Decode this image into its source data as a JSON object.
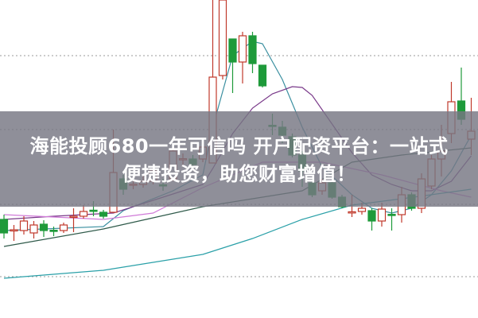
{
  "headline": {
    "line1": "海能投顾680一年可信吗 开户配资平台：一站式",
    "line2": "便捷投资，助您财富增值！"
  },
  "colors": {
    "up": "#c0392b",
    "down": "#1e9a3a",
    "ma_short": "#3a8fa0",
    "ma_mid": "#7a3a8a",
    "ma_long": "#2f5a4a",
    "ma_pink": "#d07ad8",
    "ma_base": "#2aa0a8",
    "grid": "#999999",
    "banner": "#767682"
  },
  "chart_data": {
    "type": "candlestick",
    "ylim": [
      0,
      100
    ],
    "grid": true,
    "grid_levels": [
      82.5,
      59.25,
      35.75,
      13
    ],
    "candles": [
      [
        31,
        26.75,
        32.5,
        25
      ],
      [
        27.5,
        27.75,
        29.25,
        24.25
      ],
      [
        27.5,
        30.5,
        32,
        26.25
      ],
      [
        26.75,
        29.25,
        30.5,
        25
      ],
      [
        29.5,
        27.5,
        30.75,
        25.5
      ],
      [
        27.6,
        27.4,
        28.75,
        25.75
      ],
      [
        27.5,
        29.25,
        30,
        26.75
      ],
      [
        31.8,
        32,
        34.5,
        27
      ],
      [
        32,
        33.5,
        35.5,
        31.25
      ],
      [
        33.9,
        33.6,
        36.75,
        32
      ],
      [
        33.25,
        32,
        34,
        31.25
      ],
      [
        33.25,
        45.75,
        59.25,
        33
      ],
      [
        43.75,
        40.5,
        45,
        38.75
      ],
      [
        41.9,
        42.1,
        43.75,
        40.5
      ],
      [
        42,
        43,
        45,
        41
      ],
      [
        43,
        46.25,
        48,
        42
      ],
      [
        41.9,
        41.6,
        43.75,
        40
      ],
      [
        43.75,
        52.5,
        53.75,
        43
      ],
      [
        49.9,
        50.1,
        51.75,
        47.5
      ],
      [
        50,
        48.25,
        51.25,
        47
      ],
      [
        50,
        53.75,
        56,
        49
      ],
      [
        48.75,
        75.75,
        100,
        48.75
      ],
      [
        76.25,
        100,
        100,
        75
      ],
      [
        87.75,
        80.5,
        87.75,
        70.75
      ],
      [
        80.5,
        88.75,
        90,
        73.75
      ],
      [
        88.75,
        80,
        90,
        77
      ],
      [
        79.5,
        73,
        79.5,
        72.5
      ],
      [
        60.6,
        60.4,
        64.25,
        57.5
      ],
      [
        60,
        57.5,
        62,
        55
      ],
      [
        57,
        51.25,
        58,
        50.5
      ],
      [
        51.25,
        46.25,
        52.5,
        41.25
      ],
      [
        42.5,
        38.75,
        43.75,
        38
      ],
      [
        40,
        42.5,
        43.75,
        38.75
      ],
      [
        42.5,
        38,
        43,
        37.5
      ],
      [
        38,
        35,
        38.75,
        34.5
      ],
      [
        33.1,
        33.4,
        38.75,
        31.75
      ],
      [
        33.5,
        34.5,
        36.25,
        32.5
      ],
      [
        33.75,
        30.5,
        34.5,
        27.5
      ],
      [
        30.5,
        34.25,
        36.25,
        28.75
      ],
      [
        32.6,
        32.4,
        34.5,
        27.5
      ],
      [
        32.5,
        38.75,
        41.25,
        30
      ],
      [
        38.75,
        34.5,
        39.5,
        33.75
      ],
      [
        34.5,
        43.75,
        45.5,
        33
      ],
      [
        41.5,
        50,
        51.25,
        40.5
      ],
      [
        50,
        52.5,
        60.75,
        44.5
      ],
      [
        58,
        68,
        74.25,
        55
      ],
      [
        68.25,
        62.5,
        78.75,
        60.75
      ],
      [
        56.25,
        58.75,
        69.25,
        51.25
      ]
    ],
    "candle_fields": [
      "open",
      "close",
      "high",
      "low"
    ],
    "moving_averages": [
      {
        "color_key": "ma_short",
        "points": [
          [
            0,
            27.5
          ],
          [
            10,
            28.75
          ],
          [
            12,
            33.75
          ],
          [
            17,
            40
          ],
          [
            20,
            45
          ],
          [
            21,
            60
          ],
          [
            22,
            71.25
          ],
          [
            23,
            82.5
          ],
          [
            25,
            87
          ],
          [
            26,
            86.25
          ],
          [
            28,
            75
          ],
          [
            30,
            60
          ],
          [
            32,
            47.5
          ],
          [
            35,
            38.75
          ],
          [
            37,
            34.5
          ],
          [
            39,
            33
          ],
          [
            41,
            34.5
          ],
          [
            43,
            38.75
          ],
          [
            45,
            46.25
          ],
          [
            47,
            57.5
          ]
        ]
      },
      {
        "color_key": "ma_mid",
        "points": [
          [
            0,
            31
          ],
          [
            5,
            32
          ],
          [
            11,
            33
          ],
          [
            16,
            38
          ],
          [
            20,
            42
          ],
          [
            21,
            47
          ],
          [
            23,
            58
          ],
          [
            25,
            66
          ],
          [
            27,
            70.5
          ],
          [
            29,
            72.75
          ],
          [
            30,
            72.5
          ],
          [
            31,
            70
          ],
          [
            33,
            61
          ],
          [
            35,
            52
          ],
          [
            37,
            45
          ],
          [
            39,
            42
          ],
          [
            41,
            40
          ],
          [
            43,
            40
          ],
          [
            45,
            43
          ],
          [
            47,
            51
          ]
        ]
      },
      {
        "color_key": "ma_pink",
        "points": [
          [
            0,
            32.5
          ],
          [
            10,
            31
          ],
          [
            15,
            33
          ],
          [
            20,
            41
          ],
          [
            26,
            49
          ],
          [
            32,
            49
          ],
          [
            38,
            45
          ],
          [
            44,
            40
          ],
          [
            47,
            38
          ]
        ]
      },
      {
        "color_key": "ma_long",
        "points": [
          [
            0,
            22.5
          ],
          [
            10,
            28
          ],
          [
            15,
            31.5
          ],
          [
            20,
            35
          ],
          [
            25,
            37.5
          ],
          [
            30,
            40
          ],
          [
            35,
            49
          ],
          [
            40,
            51.25
          ],
          [
            47,
            53.5
          ]
        ]
      },
      {
        "color_key": "ma_base",
        "points": [
          [
            0,
            12.5
          ],
          [
            10,
            15
          ],
          [
            20,
            20
          ],
          [
            25,
            25
          ],
          [
            30,
            31
          ],
          [
            35,
            35.5
          ],
          [
            40,
            37.5
          ],
          [
            47,
            40.5
          ]
        ]
      }
    ]
  }
}
